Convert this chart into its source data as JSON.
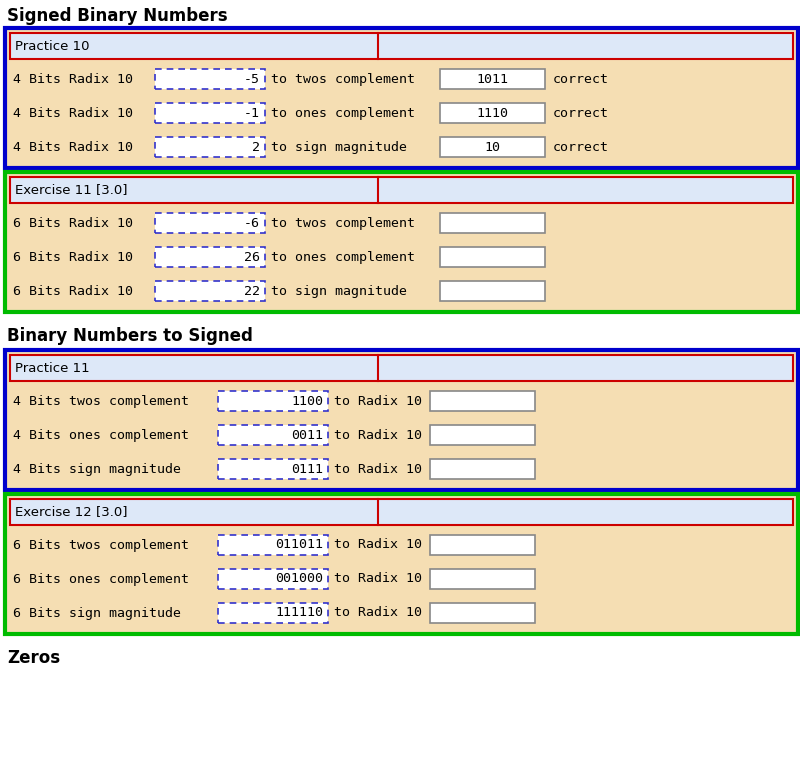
{
  "title1": "Signed Binary Numbers",
  "title2": "Binary Numbers to Signed",
  "footer": "Zeros",
  "page_bg": "#ffffff",
  "section_bg": "#f5deb3",
  "header_bg": "#dde8f8",
  "dash_color": "#3333cc",
  "solid_color": "#888888",
  "red_line_color": "#cc0000",
  "blue_border": "#0000cc",
  "green_border": "#00bb00",
  "red_border": "#cc0000",
  "practice10": {
    "label": "Practice 10",
    "rows": [
      {
        "prefix": "4 Bits Radix 10",
        "input": "-5",
        "conv": "to twos complement",
        "output": "1011",
        "result": "correct"
      },
      {
        "prefix": "4 Bits Radix 10",
        "input": "-1",
        "conv": "to ones complement",
        "output": "1110",
        "result": "correct"
      },
      {
        "prefix": "4 Bits Radix 10",
        "input": "2",
        "conv": "to sign magnitude",
        "output": "10",
        "result": "correct"
      }
    ]
  },
  "exercise11": {
    "label": "Exercise 11 [3.0]",
    "rows": [
      {
        "prefix": "6 Bits Radix 10",
        "input": "-6",
        "conv": "to twos complement",
        "output": "",
        "result": ""
      },
      {
        "prefix": "6 Bits Radix 10",
        "input": "26",
        "conv": "to ones complement",
        "output": "",
        "result": ""
      },
      {
        "prefix": "6 Bits Radix 10",
        "input": "22",
        "conv": "to sign magnitude",
        "output": "",
        "result": ""
      }
    ]
  },
  "practice11": {
    "label": "Practice 11",
    "rows": [
      {
        "prefix": "4 Bits twos complement",
        "input": "1100",
        "conv": "to Radix 10",
        "output": "",
        "result": ""
      },
      {
        "prefix": "4 Bits ones complement",
        "input": "0011",
        "conv": "to Radix 10",
        "output": "",
        "result": ""
      },
      {
        "prefix": "4 Bits sign magnitude",
        "input": "0111",
        "conv": "to Radix 10",
        "output": "",
        "result": ""
      }
    ]
  },
  "exercise12": {
    "label": "Exercise 12 [3.0]",
    "rows": [
      {
        "prefix": "6 Bits twos complement",
        "input": "011011",
        "conv": "to Radix 10",
        "output": "",
        "result": ""
      },
      {
        "prefix": "6 Bits ones complement",
        "input": "001000",
        "conv": "to Radix 10",
        "output": "",
        "result": ""
      },
      {
        "prefix": "6 Bits sign magnitude",
        "input": "111110",
        "conv": "to Radix 10",
        "output": "",
        "result": ""
      }
    ]
  }
}
